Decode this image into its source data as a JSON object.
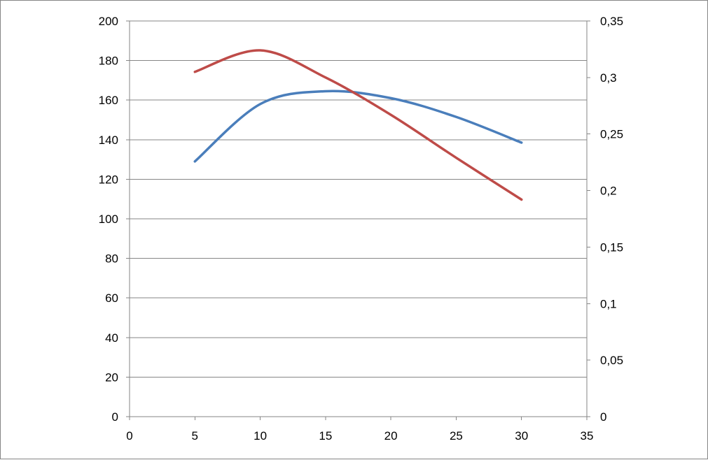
{
  "chart_data": {
    "type": "line",
    "title": "",
    "xlabel": "",
    "ylabel": "",
    "y2label": "",
    "grid": true,
    "legend": "none",
    "xlim": [
      0,
      35
    ],
    "ylim": [
      0,
      200
    ],
    "y2lim": [
      0,
      0.35
    ],
    "x_ticks": [
      "0",
      "5",
      "10",
      "15",
      "20",
      "25",
      "30",
      "35"
    ],
    "y_ticks": [
      "0",
      "20",
      "40",
      "60",
      "80",
      "100",
      "120",
      "140",
      "160",
      "180",
      "200"
    ],
    "y2_ticks": [
      "0",
      "0,05",
      "0,1",
      "0,15",
      "0,2",
      "0,25",
      "0,3",
      "0,35"
    ],
    "series": [
      {
        "axis": "left",
        "color": "#4a7ebb",
        "x": [
          5,
          10,
          15,
          20,
          25,
          30
        ],
        "values": [
          129,
          158,
          164.5,
          161,
          151.5,
          138.5
        ]
      },
      {
        "axis": "right",
        "color": "#be4b48",
        "x": [
          5,
          10,
          15,
          20,
          25,
          30
        ],
        "values": [
          0.305,
          0.324,
          0.3,
          0.267,
          0.229,
          0.192
        ]
      }
    ]
  }
}
